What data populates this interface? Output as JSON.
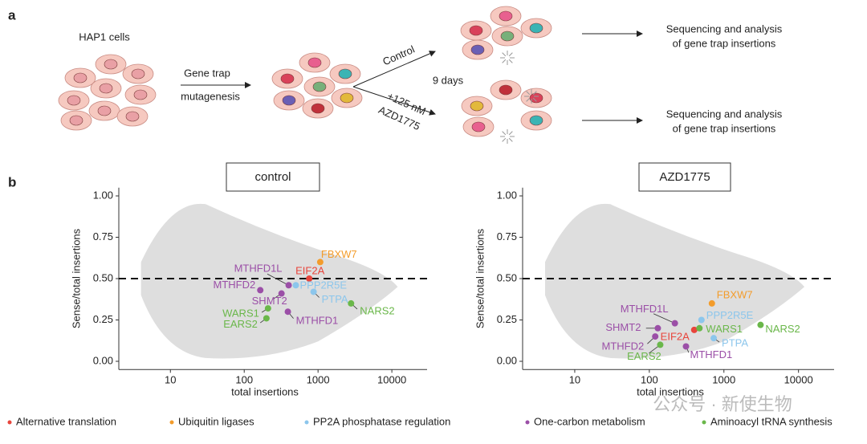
{
  "panel_labels": [
    "a",
    "b"
  ],
  "diagram": {
    "start": "HAP1 cells",
    "step": [
      "Gene trap",
      "mutagenesis"
    ],
    "branch_control": "Control",
    "branch_drug": [
      "+125 nM",
      "AZD1775"
    ],
    "duration": "9 days",
    "outputs": [
      [
        "Sequencing and analysis",
        "of gene trap insertions"
      ],
      [
        "Sequencing and analysis",
        "of gene trap insertions"
      ]
    ]
  },
  "watermark": "公众号 · 新使生物",
  "chart_data": [
    {
      "type": "scatter",
      "title": "control",
      "xlabel": "total insertions",
      "ylabel": "Sense/total insertions",
      "log_x": true,
      "xlim": [
        2,
        30000
      ],
      "xticks": [
        10,
        100,
        1000,
        10000
      ],
      "ylim": [
        -0.05,
        1.05
      ],
      "yticks": [
        {
          "value": 0,
          "label": "0.00"
        },
        {
          "value": 0.25,
          "label": "0.25"
        },
        {
          "value": 0.5,
          "label": "0.50"
        },
        {
          "value": 0.75,
          "label": "0.75"
        },
        {
          "value": 1,
          "label": "1.00"
        }
      ],
      "threshold": 0.5,
      "series": [
        {
          "name": "Alternative translation",
          "color": "#e8453c",
          "x": [
            760
          ],
          "values": [
            0.5
          ],
          "labels": [
            "EIF2A"
          ]
        },
        {
          "name": "Ubiquitin ligases",
          "color": "#f39c2b",
          "x": [
            1070
          ],
          "values": [
            0.6
          ],
          "labels": [
            "FBXW7"
          ]
        },
        {
          "name": "PP2A phosphatase regulation",
          "color": "#8cc6ec",
          "x": [
            500,
            870
          ],
          "values": [
            0.46,
            0.42
          ],
          "labels": [
            "PPP2R5E",
            "PTPA"
          ]
        },
        {
          "name": "One-carbon metabolism",
          "color": "#9b4fa7",
          "x": [
            400,
            165,
            320,
            390
          ],
          "values": [
            0.46,
            0.43,
            0.41,
            0.3
          ],
          "labels": [
            "MTHFD1L",
            "MTHFD2",
            "SHMT2",
            "MTHFD1"
          ]
        },
        {
          "name": "Aminoacyl tRNA synthesis",
          "color": "#6ab74a",
          "x": [
            210,
            200,
            2800
          ],
          "values": [
            0.32,
            0.26,
            0.35
          ],
          "labels": [
            "WARS1",
            "EARS2",
            "NARS2"
          ]
        }
      ]
    },
    {
      "type": "scatter",
      "title": "AZD1775",
      "xlabel": "total insertions",
      "ylabel": "Sense/total insertions",
      "log_x": true,
      "xlim": [
        2,
        30000
      ],
      "xticks": [
        10,
        100,
        1000,
        10000
      ],
      "ylim": [
        -0.05,
        1.05
      ],
      "yticks": [
        {
          "value": 0,
          "label": "0.00"
        },
        {
          "value": 0.25,
          "label": "0.25"
        },
        {
          "value": 0.5,
          "label": "0.50"
        },
        {
          "value": 0.75,
          "label": "0.75"
        },
        {
          "value": 1,
          "label": "1.00"
        }
      ],
      "threshold": 0.5,
      "series": [
        {
          "name": "Alternative translation",
          "color": "#e8453c",
          "x": [
            400
          ],
          "values": [
            0.19
          ],
          "labels": [
            "EIF2A"
          ]
        },
        {
          "name": "Ubiquitin ligases",
          "color": "#f39c2b",
          "x": [
            690
          ],
          "values": [
            0.35
          ],
          "labels": [
            "FBXW7"
          ]
        },
        {
          "name": "PP2A phosphatase regulation",
          "color": "#8cc6ec",
          "x": [
            500,
            730
          ],
          "values": [
            0.25,
            0.14
          ],
          "labels": [
            "PPP2R5E",
            "PTPA"
          ]
        },
        {
          "name": "One-carbon metabolism",
          "color": "#9b4fa7",
          "x": [
            220,
            130,
            120,
            310
          ],
          "values": [
            0.23,
            0.2,
            0.15,
            0.09
          ],
          "labels": [
            "MTHFD1L",
            "SHMT2",
            "MTHFD2",
            "MTHFD1"
          ]
        },
        {
          "name": "Aminoacyl tRNA synthesis",
          "color": "#6ab74a",
          "x": [
            470,
            140,
            3100
          ],
          "values": [
            0.2,
            0.1,
            0.22
          ],
          "labels": [
            "WARS1",
            "EARS2",
            "NARS2"
          ]
        }
      ]
    }
  ]
}
